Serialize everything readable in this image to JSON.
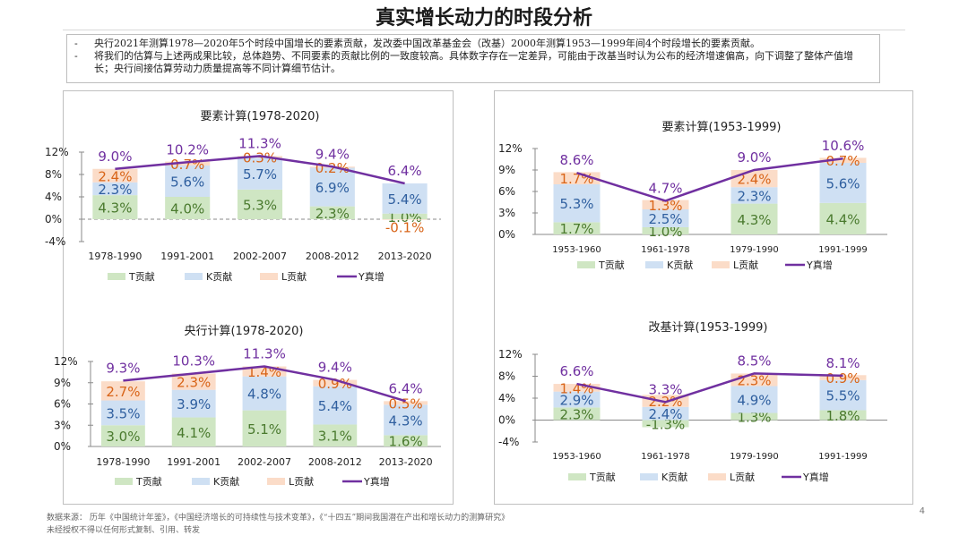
{
  "page": {
    "title": "真实增长动力的时段分析",
    "notes": [
      "央行2021年测算1978—2020年5个时段中国增长的要素贡献，发改委中国改革基金会（改基）2000年测算1953—1999年间4个时段增长的要素贡献。",
      "将我们的估算与上述两成果比较，总体趋势、不同要素的贡献比例的一致度较高。具体数字存在一定差异，可能由于改基当时认为公布的经济增速偏高，向下调整了整体产值增长；央行间接估算劳动力质量提高等不同计算细节估计。"
    ],
    "footer_source": "数据来源：  历年《中国统计年鉴》，《中国经济增长的可持续性与技术变革》，《“十四五”期间我国潜在产出和增长动力的测算研究》",
    "footer_copyright": "未经授权不得以任何形式复制、引用、转发",
    "page_number": "4"
  },
  "colors": {
    "T": "#cfe6c3",
    "K": "#cfe0f3",
    "L": "#fbdcc8",
    "Y": "#7030a0",
    "T_label": "#4a7a2e",
    "K_label": "#2f5f9f",
    "L_label": "#d86418"
  },
  "chart_data": [
    {
      "type": "bar",
      "title": "要素计算(1978-2020)",
      "categories": [
        "1978-1990",
        "1991-2001",
        "2002-2007",
        "2008-2012",
        "2013-2020"
      ],
      "ylim": [
        -4,
        12
      ],
      "yticks": [
        -4,
        0,
        4,
        8,
        12
      ],
      "ytick_labels": [
        "-4%",
        "0%",
        "4%",
        "8%",
        "12%"
      ],
      "zero_dashed": true,
      "series": [
        {
          "key": "T",
          "name": "T贡献",
          "values": [
            4.3,
            4.0,
            5.3,
            2.3,
            1.0
          ],
          "labels": [
            "4.3%",
            "4.0%",
            "5.3%",
            "2.3%",
            "1.0%"
          ]
        },
        {
          "key": "K",
          "name": "K贡献",
          "values": [
            2.3,
            5.6,
            5.7,
            6.9,
            5.4
          ],
          "labels": [
            "2.3%",
            "5.6%",
            "5.7%",
            "6.9%",
            "5.4%"
          ]
        },
        {
          "key": "L",
          "name": "L贡献",
          "values": [
            2.4,
            0.7,
            0.3,
            0.2,
            -0.1
          ],
          "labels": [
            "2.4%",
            "0.7%",
            "0.3%",
            "0.2%",
            "-0.1%"
          ]
        },
        {
          "key": "Y",
          "name": "Y真增",
          "kind": "line",
          "values": [
            9.0,
            10.2,
            11.3,
            9.4,
            6.4
          ],
          "labels": [
            "9.0%",
            "10.2%",
            "11.3%",
            "9.4%",
            "6.4%"
          ]
        }
      ]
    },
    {
      "type": "bar",
      "title": "央行计算(1978-2020)",
      "categories": [
        "1978-1990",
        "1991-2001",
        "2002-2007",
        "2008-2012",
        "2013-2020"
      ],
      "ylim": [
        0,
        12
      ],
      "yticks": [
        0,
        3,
        6,
        9,
        12
      ],
      "ytick_labels": [
        "0%",
        "3%",
        "6%",
        "9%",
        "12%"
      ],
      "zero_dashed": false,
      "series": [
        {
          "key": "T",
          "name": "T贡献",
          "values": [
            3.0,
            4.1,
            5.1,
            3.1,
            1.6
          ],
          "labels": [
            "3.0%",
            "4.1%",
            "5.1%",
            "3.1%",
            "1.6%"
          ]
        },
        {
          "key": "K",
          "name": "K贡献",
          "values": [
            3.5,
            3.9,
            4.8,
            5.4,
            4.3
          ],
          "labels": [
            "3.5%",
            "3.9%",
            "4.8%",
            "5.4%",
            "4.3%"
          ]
        },
        {
          "key": "L",
          "name": "L贡献",
          "values": [
            2.7,
            2.3,
            1.4,
            0.9,
            0.5
          ],
          "labels": [
            "2.7%",
            "2.3%",
            "1.4%",
            "0.9%",
            "0.5%"
          ]
        },
        {
          "key": "Y",
          "name": "Y真增",
          "kind": "line",
          "values": [
            9.3,
            10.3,
            11.3,
            9.4,
            6.4
          ],
          "labels": [
            "9.3%",
            "10.3%",
            "11.3%",
            "9.4%",
            "6.4%"
          ]
        }
      ]
    },
    {
      "type": "bar",
      "title": "要素计算(1953-1999)",
      "categories": [
        "1953-1960",
        "1961-1978",
        "1979-1990",
        "1991-1999"
      ],
      "ylim": [
        0,
        12
      ],
      "yticks": [
        0,
        3,
        6,
        9,
        12
      ],
      "ytick_labels": [
        "0%",
        "3%",
        "6%",
        "9%",
        "12%"
      ],
      "zero_dashed": false,
      "series": [
        {
          "key": "T",
          "name": "T贡献",
          "values": [
            1.7,
            1.0,
            4.3,
            4.4
          ],
          "labels": [
            "1.7%",
            "1.0%",
            "4.3%",
            "4.4%"
          ]
        },
        {
          "key": "K",
          "name": "K贡献",
          "values": [
            5.3,
            2.5,
            2.3,
            5.6
          ],
          "labels": [
            "5.3%",
            "2.5%",
            "2.3%",
            "5.6%"
          ]
        },
        {
          "key": "L",
          "name": "L贡献",
          "values": [
            1.7,
            1.3,
            2.4,
            0.7
          ],
          "labels": [
            "1.7%",
            "1.3%",
            "2.4%",
            "0.7%"
          ]
        },
        {
          "key": "Y",
          "name": "Y真增",
          "kind": "line",
          "values": [
            8.6,
            4.7,
            9.0,
            10.6
          ],
          "labels": [
            "8.6%",
            "4.7%",
            "9.0%",
            "10.6%"
          ]
        }
      ]
    },
    {
      "type": "bar",
      "title": "改基计算(1953-1999)",
      "categories": [
        "1953-1960",
        "1961-1978",
        "1979-1990",
        "1991-1999"
      ],
      "ylim": [
        -4,
        12
      ],
      "yticks": [
        -4,
        0,
        4,
        8,
        12
      ],
      "ytick_labels": [
        "-4%",
        "0%",
        "4%",
        "8%",
        "12%"
      ],
      "zero_dashed": false,
      "series": [
        {
          "key": "T",
          "name": "T贡献",
          "values": [
            2.3,
            -1.3,
            1.3,
            1.8
          ],
          "labels": [
            "2.3%",
            "-1.3%",
            "1.3%",
            "1.8%"
          ]
        },
        {
          "key": "K",
          "name": "K贡献",
          "values": [
            2.9,
            2.4,
            4.9,
            5.5
          ],
          "labels": [
            "2.9%",
            "2.4%",
            "4.9%",
            "5.5%"
          ]
        },
        {
          "key": "L",
          "name": "L贡献",
          "values": [
            1.4,
            2.2,
            2.3,
            0.9
          ],
          "labels": [
            "1.4%",
            "2.2%",
            "2.3%",
            "0.9%"
          ]
        },
        {
          "key": "Y",
          "name": "Y真增",
          "kind": "line",
          "values": [
            6.6,
            3.3,
            8.5,
            8.1
          ],
          "labels": [
            "6.6%",
            "3.3%",
            "8.5%",
            "8.1%"
          ]
        }
      ]
    }
  ]
}
